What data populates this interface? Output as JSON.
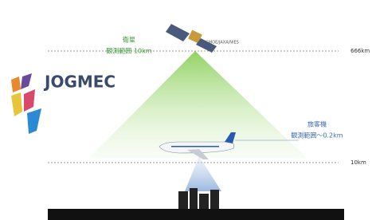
{
  "satellite": {
    "label": "衛星",
    "range": "観測範囲 10km",
    "credit": "GMOE/JAXA/NIES",
    "altitude": "666km"
  },
  "logo": {
    "text": "JOGMEC"
  },
  "aircraft": {
    "label": "旅客機",
    "range": "観測範囲〜0.2km",
    "altitude": "10km"
  }
}
